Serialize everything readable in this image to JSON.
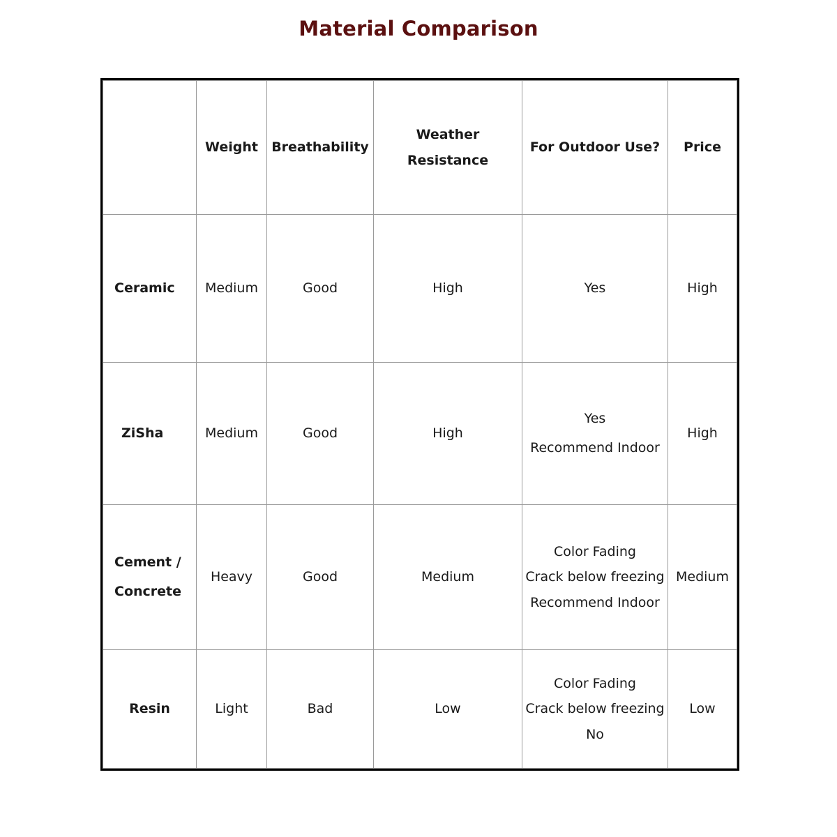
{
  "title": "Material Comparison",
  "table": {
    "headers": [
      "",
      "Weight",
      "Breathability",
      "Weather Resistance",
      "For Outdoor Use?",
      "Price"
    ],
    "rows": [
      {
        "material": [
          "Ceramic"
        ],
        "weight": "Medium",
        "breathability": "Good",
        "weather": "High",
        "outdoor": [
          "Yes"
        ],
        "price": "High"
      },
      {
        "material": [
          "ZiSha"
        ],
        "weight": "Medium",
        "breathability": "Good",
        "weather": "High",
        "outdoor": [
          "Yes",
          "Recommend Indoor"
        ],
        "price": "High"
      },
      {
        "material": [
          "Cement /",
          "Concrete"
        ],
        "weight": "Heavy",
        "breathability": "Good",
        "weather": "Medium",
        "outdoor": [
          "Color Fading",
          "Crack below freezing",
          "Recommend Indoor"
        ],
        "price": "Medium"
      },
      {
        "material": [
          "Resin"
        ],
        "weight": "Light",
        "breathability": "Bad",
        "weather": "Low",
        "outdoor": [
          "Color Fading",
          "Crack below freezing",
          "No"
        ],
        "price": "Low"
      }
    ]
  },
  "colors": {
    "title": "#5b1010",
    "border": "#000000",
    "grid": "#9a9a9a"
  }
}
